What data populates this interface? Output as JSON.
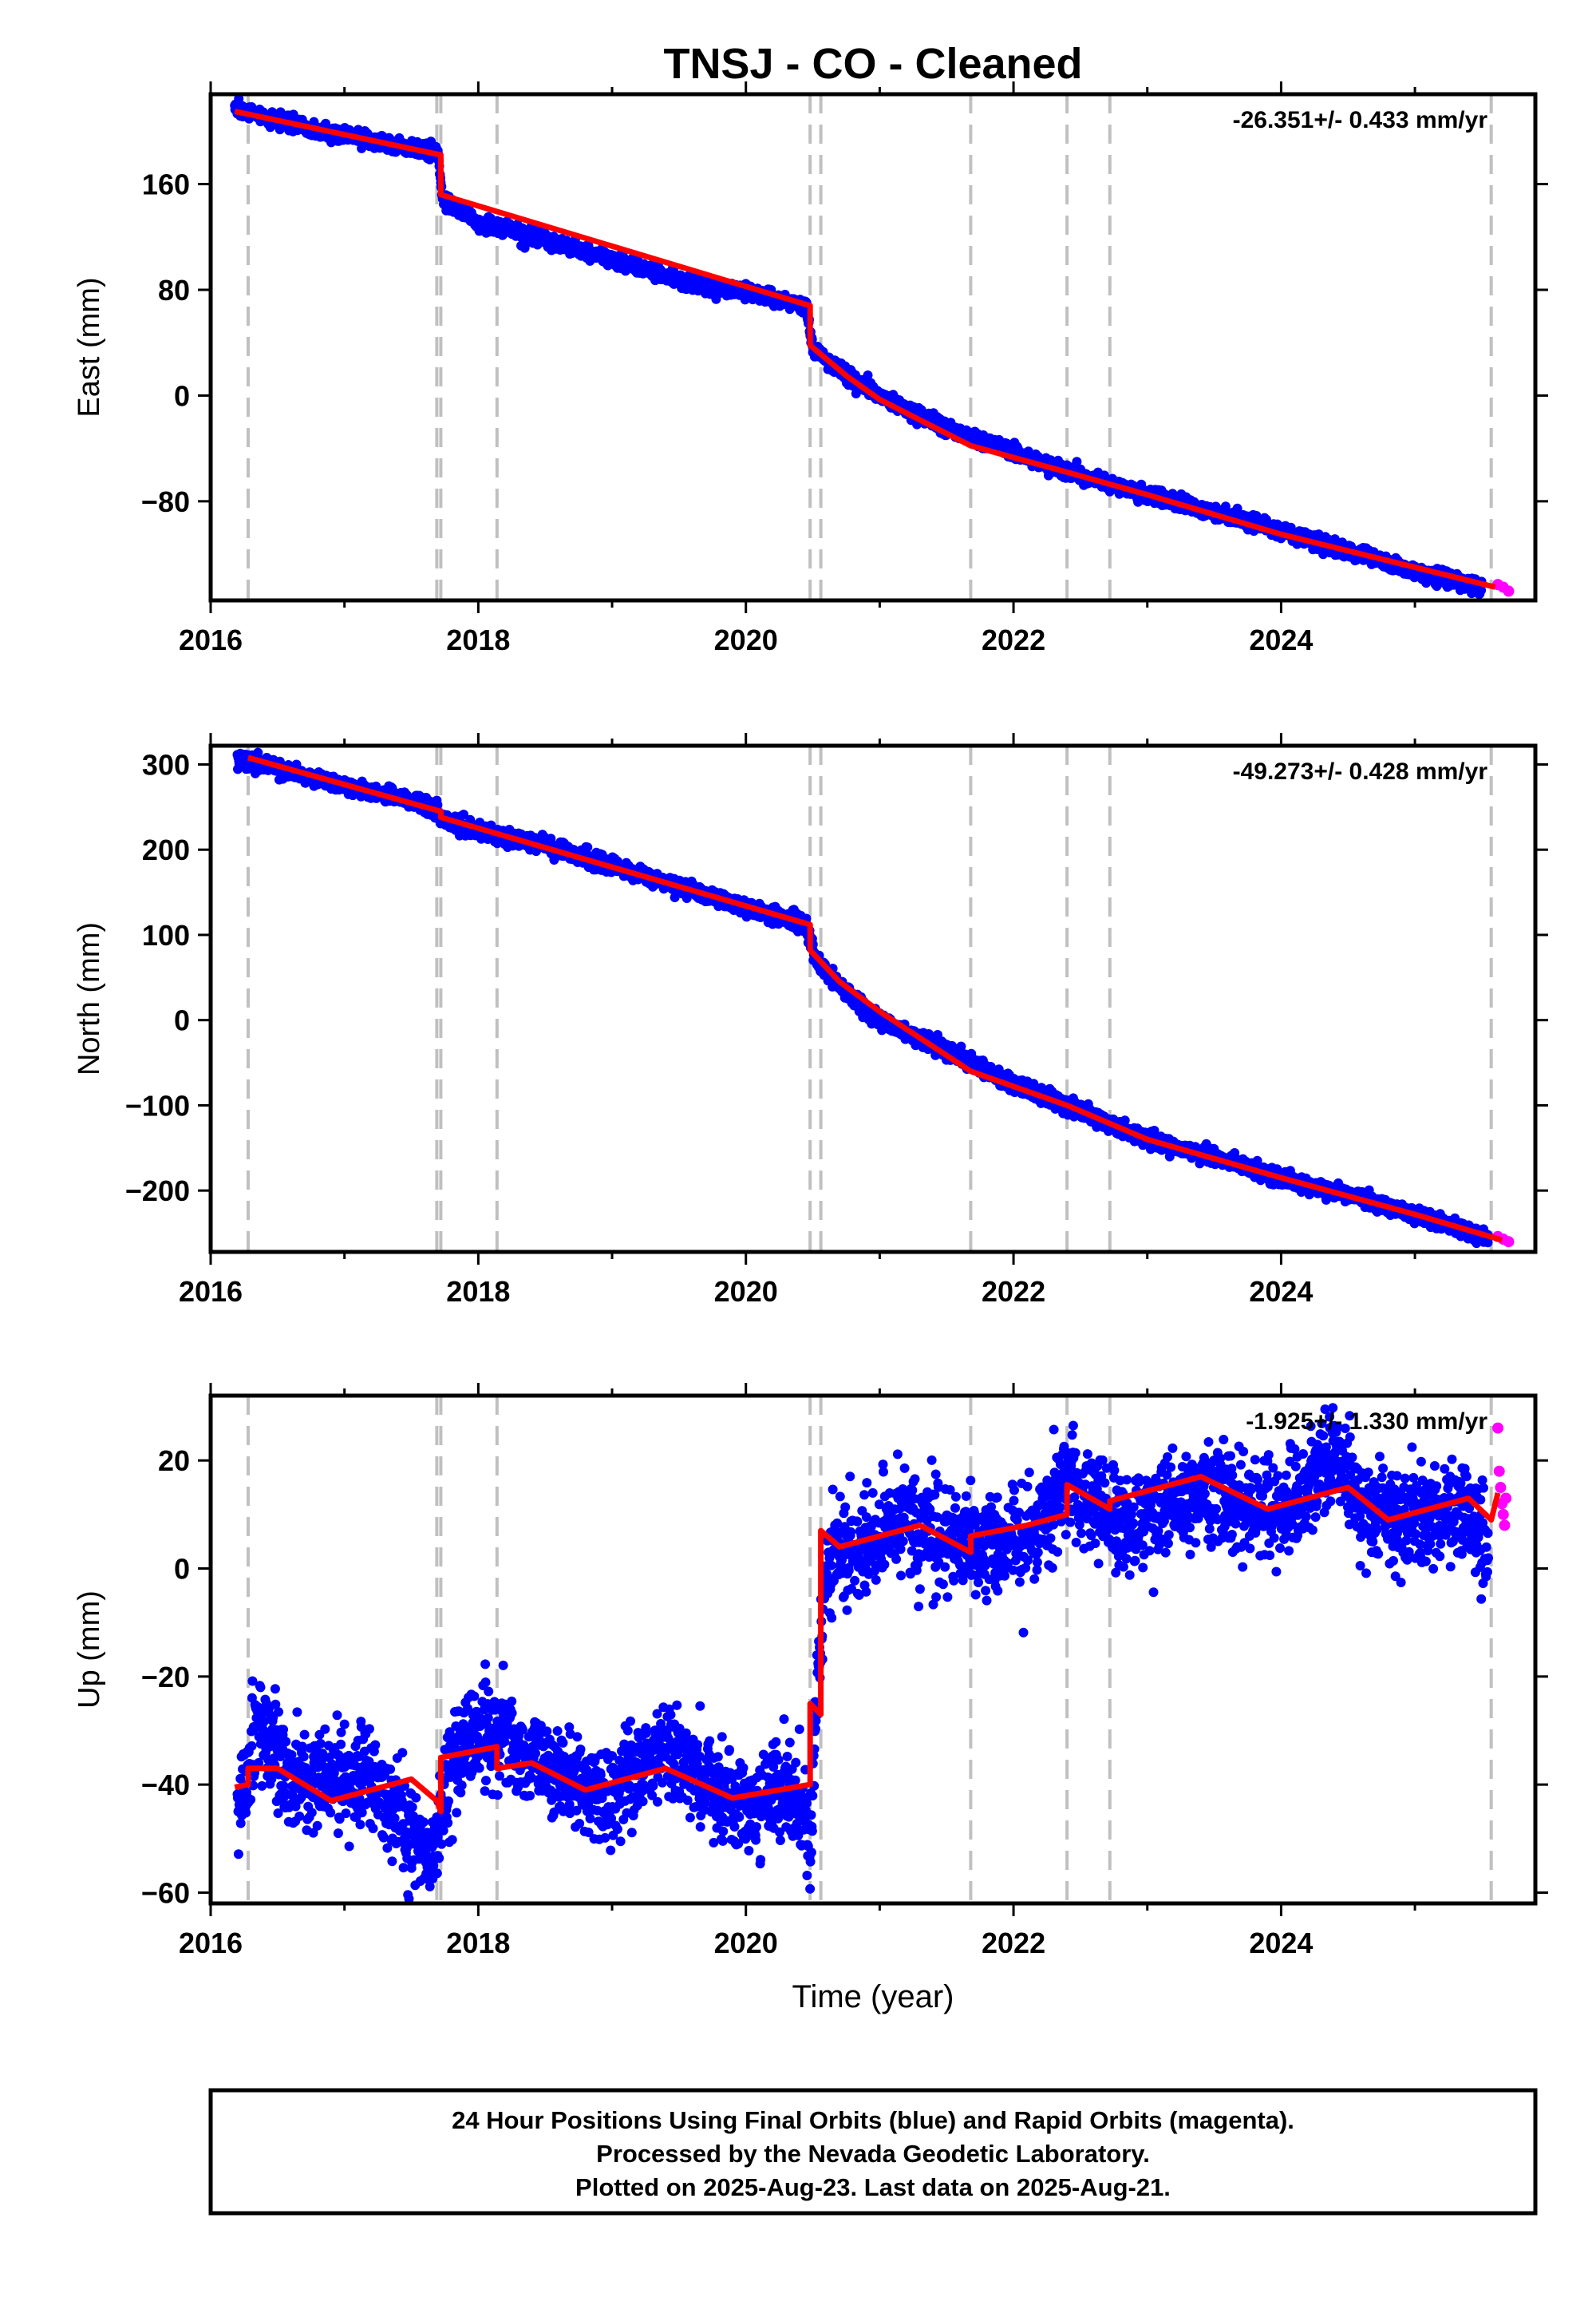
{
  "title": "TNSJ  - CO - Cleaned",
  "footer": [
    "24 Hour Positions Using Final Orbits (blue) and Rapid Orbits (magenta).",
    "Processed by the Nevada Geodetic Laboratory.",
    "Plotted on 2025-Aug-23. Last data on 2025-Aug-21."
  ],
  "colors": {
    "final": "#0000ff",
    "rapid": "#ff00ff",
    "model": "#ff0000",
    "event_line": "#c0c0c0",
    "frame": "#000000"
  },
  "chart_data": [
    {
      "type": "scatter",
      "component": "East",
      "ylabel": "East (mm)",
      "xlabel": "",
      "xlim": [
        2016.0,
        2025.9
      ],
      "ylim": [
        -155,
        228
      ],
      "xticks": [
        2016,
        2018,
        2020,
        2022,
        2024
      ],
      "yticks": [
        -80,
        0,
        80,
        160
      ],
      "grid": false,
      "rate_label": "-26.351+/- 0.433 mm/yr",
      "rate": -26.351,
      "rate_sigma": 0.433,
      "events": [
        2016.28,
        2017.69,
        2017.72,
        2018.14,
        2020.48,
        2020.56,
        2021.68,
        2022.4,
        2022.72,
        2025.57
      ],
      "model": [
        [
          2016.18,
          215
        ],
        [
          2017.72,
          182
        ],
        [
          2017.72,
          152
        ],
        [
          2020.48,
          68
        ],
        [
          2020.48,
          38
        ],
        [
          2020.75,
          15
        ],
        [
          2021.0,
          -3
        ],
        [
          2021.68,
          -38
        ],
        [
          2022.4,
          -58
        ],
        [
          2023.0,
          -75
        ],
        [
          2024.0,
          -105
        ],
        [
          2025.6,
          -145
        ]
      ],
      "final_points": [
        [
          2016.18,
          218
        ],
        [
          2016.5,
          207
        ],
        [
          2017.0,
          197
        ],
        [
          2017.5,
          187
        ],
        [
          2017.7,
          183
        ],
        [
          2017.73,
          148
        ],
        [
          2018.0,
          131
        ],
        [
          2018.5,
          118
        ],
        [
          2019.0,
          103
        ],
        [
          2019.5,
          88
        ],
        [
          2020.0,
          78
        ],
        [
          2020.45,
          68
        ],
        [
          2020.5,
          35
        ],
        [
          2020.8,
          12
        ],
        [
          2021.0,
          0
        ],
        [
          2021.5,
          -25
        ],
        [
          2022.0,
          -42
        ],
        [
          2022.4,
          -58
        ],
        [
          2023.0,
          -75
        ],
        [
          2023.5,
          -88
        ],
        [
          2024.0,
          -102
        ],
        [
          2024.5,
          -118
        ],
        [
          2025.0,
          -133
        ],
        [
          2025.5,
          -145
        ]
      ],
      "rapid_points": [
        [
          2025.62,
          -143
        ],
        [
          2025.66,
          -145
        ],
        [
          2025.7,
          -148
        ]
      ],
      "scatter_mm": 3
    },
    {
      "type": "scatter",
      "component": "North",
      "ylabel": "North (mm)",
      "xlabel": "",
      "xlim": [
        2016.0,
        2025.9
      ],
      "ylim": [
        -272,
        322
      ],
      "xticks": [
        2016,
        2018,
        2020,
        2022,
        2024
      ],
      "yticks": [
        -200,
        -100,
        0,
        100,
        200,
        300
      ],
      "grid": false,
      "rate_label": "-49.273+/- 0.428 mm/yr",
      "rate": -49.273,
      "rate_sigma": 0.428,
      "events": [
        2016.28,
        2017.69,
        2017.72,
        2018.14,
        2020.48,
        2020.56,
        2021.68,
        2022.4,
        2022.72,
        2025.57
      ],
      "model": [
        [
          2016.28,
          308
        ],
        [
          2017.72,
          245
        ],
        [
          2017.72,
          238
        ],
        [
          2020.48,
          112
        ],
        [
          2020.48,
          82
        ],
        [
          2020.7,
          45
        ],
        [
          2021.0,
          10
        ],
        [
          2021.68,
          -60
        ],
        [
          2022.4,
          -100
        ],
        [
          2023.0,
          -140
        ],
        [
          2024.0,
          -185
        ],
        [
          2025.0,
          -228
        ],
        [
          2025.65,
          -258
        ]
      ],
      "final_points": [
        [
          2016.2,
          306
        ],
        [
          2016.5,
          295
        ],
        [
          2017.0,
          275
        ],
        [
          2017.5,
          258
        ],
        [
          2017.7,
          245
        ],
        [
          2017.75,
          232
        ],
        [
          2018.0,
          222
        ],
        [
          2018.5,
          205
        ],
        [
          2019.0,
          180
        ],
        [
          2019.5,
          158
        ],
        [
          2020.0,
          132
        ],
        [
          2020.45,
          112
        ],
        [
          2020.52,
          70
        ],
        [
          2020.8,
          25
        ],
        [
          2021.0,
          0
        ],
        [
          2021.5,
          -35
        ],
        [
          2022.0,
          -75
        ],
        [
          2022.4,
          -100
        ],
        [
          2023.0,
          -140
        ],
        [
          2023.5,
          -160
        ],
        [
          2024.0,
          -185
        ],
        [
          2024.5,
          -205
        ],
        [
          2025.0,
          -228
        ],
        [
          2025.55,
          -255
        ]
      ],
      "rapid_points": [
        [
          2025.62,
          -254
        ],
        [
          2025.66,
          -257
        ],
        [
          2025.7,
          -260
        ]
      ],
      "scatter_mm": 5
    },
    {
      "type": "scatter",
      "component": "Up",
      "ylabel": "Up (mm)",
      "xlabel": "Time (year)",
      "xlim": [
        2016.0,
        2025.9
      ],
      "ylim": [
        -62,
        32
      ],
      "xticks": [
        2016,
        2018,
        2020,
        2022,
        2024
      ],
      "yticks": [
        -60,
        -40,
        -20,
        0,
        20
      ],
      "grid": false,
      "rate_label": "-1.925+/- 1.330 mm/yr",
      "rate": -1.925,
      "rate_sigma": 1.33,
      "events": [
        2016.28,
        2017.69,
        2017.72,
        2018.14,
        2020.48,
        2020.56,
        2021.68,
        2022.4,
        2022.72,
        2025.57
      ],
      "model": [
        [
          2016.18,
          -40.5
        ],
        [
          2016.28,
          -40
        ],
        [
          2016.28,
          -37
        ],
        [
          2016.5,
          -37
        ],
        [
          2016.9,
          -43
        ],
        [
          2017.5,
          -39
        ],
        [
          2017.69,
          -43
        ],
        [
          2017.72,
          -45
        ],
        [
          2017.72,
          -35
        ],
        [
          2018.14,
          -33
        ],
        [
          2018.14,
          -37
        ],
        [
          2018.4,
          -36
        ],
        [
          2018.8,
          -41
        ],
        [
          2019.4,
          -37
        ],
        [
          2019.9,
          -42.5
        ],
        [
          2020.48,
          -40
        ],
        [
          2020.48,
          -25
        ],
        [
          2020.56,
          -27
        ],
        [
          2020.56,
          7
        ],
        [
          2020.7,
          4
        ],
        [
          2021.3,
          8
        ],
        [
          2021.68,
          3
        ],
        [
          2021.68,
          6
        ],
        [
          2022.1,
          8
        ],
        [
          2022.4,
          10
        ],
        [
          2022.4,
          15.5
        ],
        [
          2022.72,
          11
        ],
        [
          2022.72,
          12.5
        ],
        [
          2023.4,
          17
        ],
        [
          2023.9,
          11
        ],
        [
          2024.5,
          15
        ],
        [
          2024.8,
          9
        ],
        [
          2025.4,
          13
        ],
        [
          2025.57,
          9
        ],
        [
          2025.62,
          14
        ]
      ],
      "final_points": [
        [
          2016.2,
          -45
        ],
        [
          2016.35,
          -28
        ],
        [
          2016.5,
          -36
        ],
        [
          2016.8,
          -40
        ],
        [
          2017.2,
          -38
        ],
        [
          2017.5,
          -50
        ],
        [
          2017.65,
          -55
        ],
        [
          2017.8,
          -36
        ],
        [
          2018.0,
          -30
        ],
        [
          2018.3,
          -32
        ],
        [
          2018.6,
          -38
        ],
        [
          2018.9,
          -42
        ],
        [
          2019.2,
          -38
        ],
        [
          2019.4,
          -33
        ],
        [
          2019.7,
          -40
        ],
        [
          2020.0,
          -44
        ],
        [
          2020.3,
          -42
        ],
        [
          2020.48,
          -48
        ],
        [
          2020.55,
          -18
        ],
        [
          2020.62,
          2
        ],
        [
          2020.9,
          5
        ],
        [
          2021.2,
          9
        ],
        [
          2021.5,
          6
        ],
        [
          2021.8,
          3
        ],
        [
          2022.1,
          6
        ],
        [
          2022.4,
          16
        ],
        [
          2022.6,
          12
        ],
        [
          2022.9,
          8
        ],
        [
          2023.2,
          12
        ],
        [
          2023.5,
          15
        ],
        [
          2023.8,
          10
        ],
        [
          2024.1,
          12
        ],
        [
          2024.4,
          20
        ],
        [
          2024.7,
          10
        ],
        [
          2025.0,
          9
        ],
        [
          2025.3,
          11
        ],
        [
          2025.55,
          6
        ]
      ],
      "rapid_points": [
        [
          2025.62,
          26
        ],
        [
          2025.63,
          18
        ],
        [
          2025.64,
          15
        ],
        [
          2025.65,
          12
        ],
        [
          2025.66,
          10
        ],
        [
          2025.67,
          8
        ],
        [
          2025.68,
          13
        ]
      ],
      "scatter_mm": 5
    }
  ]
}
